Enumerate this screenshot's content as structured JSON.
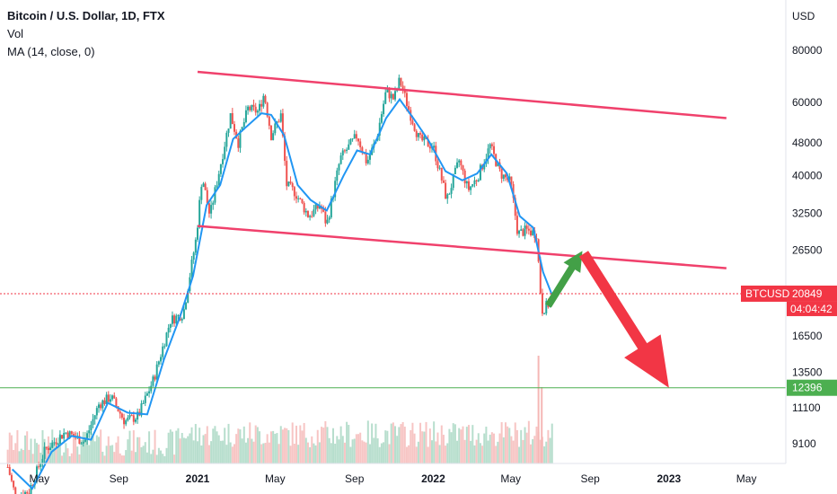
{
  "legend": {
    "title": "Bitcoin / U.S. Dollar, 1D, FTX",
    "vol": "Vol",
    "ma": "MA (14, close, 0)"
  },
  "currency": "USD",
  "colors": {
    "candle_up": "#26a69a",
    "candle_down": "#ef5350",
    "ma_line": "#2196f3",
    "channel": "#f0416c",
    "support": "#4caf50",
    "arrow_up": "#43a047",
    "arrow_down": "#f23645",
    "price_tag": "#f23645",
    "support_tag": "#4caf50"
  },
  "chart_data": {
    "type": "line",
    "title": "Bitcoin / U.S. Dollar, 1D, FTX",
    "yscale": "log",
    "ylim": [
      7600,
      95000
    ],
    "y_ticks": [
      80000,
      60000,
      48000,
      40000,
      32500,
      26500,
      20849,
      16500,
      13500,
      11100,
      9100
    ],
    "x_ticks": [
      "May",
      "Sep",
      "2021",
      "May",
      "Sep",
      "2022",
      "May",
      "Sep",
      "2023",
      "May"
    ],
    "x_ticks_bold": [
      "2021",
      "2022",
      "2023"
    ],
    "x_tick_dates": [
      "2020-05-01",
      "2020-09-01",
      "2021-01-01",
      "2021-05-01",
      "2021-09-01",
      "2022-01-01",
      "2022-05-01",
      "2022-09-01",
      "2023-01-01",
      "2023-05-01"
    ],
    "xlim": [
      "2020-03-01",
      "2023-07-01"
    ],
    "series": [
      {
        "name": "BTCUSD",
        "x": [
          "2020-03-13",
          "2020-03-25",
          "2020-04-15",
          "2020-05-10",
          "2020-06-10",
          "2020-07-10",
          "2020-08-01",
          "2020-08-20",
          "2020-09-10",
          "2020-10-01",
          "2020-10-25",
          "2020-11-20",
          "2020-12-10",
          "2020-12-30",
          "2021-01-08",
          "2021-01-20",
          "2021-02-10",
          "2021-02-21",
          "2021-03-05",
          "2021-03-20",
          "2021-04-05",
          "2021-04-14",
          "2021-04-25",
          "2021-05-10",
          "2021-05-19",
          "2021-06-01",
          "2021-06-22",
          "2021-07-10",
          "2021-07-20",
          "2021-08-10",
          "2021-09-05",
          "2021-09-20",
          "2021-10-05",
          "2021-10-20",
          "2021-11-01",
          "2021-11-10",
          "2021-11-25",
          "2021-12-10",
          "2022-01-01",
          "2022-01-22",
          "2022-02-10",
          "2022-02-24",
          "2022-03-10",
          "2022-03-30",
          "2022-04-15",
          "2022-05-01",
          "2022-05-12",
          "2022-05-25",
          "2022-06-10",
          "2022-06-18",
          "2022-06-30",
          "2022-07-05"
        ],
        "values": [
          8000,
          6800,
          7000,
          8800,
          9700,
          9200,
          11300,
          11800,
          10300,
          10600,
          13000,
          18000,
          18700,
          28500,
          40000,
          32000,
          46000,
          56000,
          48000,
          58000,
          57000,
          63000,
          50000,
          56000,
          38000,
          36500,
          32000,
          34000,
          30500,
          44000,
          50000,
          43000,
          49000,
          64000,
          61000,
          68000,
          57000,
          49000,
          47000,
          35000,
          43500,
          37000,
          39500,
          47200,
          40500,
          38500,
          29000,
          29600,
          29000,
          19000,
          19800,
          20849
        ]
      },
      {
        "name": "MA (14, close, 0)",
        "x": [
          "2020-03-20",
          "2020-04-20",
          "2020-05-20",
          "2020-06-20",
          "2020-07-20",
          "2020-08-15",
          "2020-09-15",
          "2020-10-15",
          "2020-11-10",
          "2020-12-05",
          "2020-12-25",
          "2021-01-15",
          "2021-02-05",
          "2021-02-25",
          "2021-03-15",
          "2021-04-10",
          "2021-04-25",
          "2021-05-15",
          "2021-06-05",
          "2021-06-25",
          "2021-07-20",
          "2021-08-15",
          "2021-09-05",
          "2021-09-25",
          "2021-10-20",
          "2021-11-10",
          "2021-12-01",
          "2021-12-25",
          "2022-01-20",
          "2022-02-15",
          "2022-03-10",
          "2022-04-01",
          "2022-04-25",
          "2022-05-15",
          "2022-06-05",
          "2022-06-20",
          "2022-07-05"
        ],
        "values": [
          7900,
          7100,
          8700,
          9500,
          9300,
          11400,
          10800,
          10700,
          14500,
          18400,
          23000,
          34000,
          38000,
          49000,
          52000,
          56500,
          56000,
          50000,
          38000,
          35000,
          33000,
          40000,
          46000,
          45000,
          55000,
          61000,
          55000,
          48500,
          41000,
          39000,
          40500,
          45000,
          40500,
          32000,
          30000,
          23500,
          20500
        ]
      },
      {
        "name": "Upper channel",
        "x": [
          "2021-01-01",
          "2022-07-20",
          "2023-03-31"
        ],
        "values": [
          71000,
          63000,
          55000
        ]
      },
      {
        "name": "Lower channel",
        "x": [
          "2021-01-01",
          "2022-07-20",
          "2023-03-31"
        ],
        "values": [
          30300,
          26500,
          24000
        ]
      },
      {
        "name": "12396",
        "x": [
          "2020-03-01",
          "2023-07-01"
        ],
        "values": [
          12396,
          12396
        ]
      }
    ],
    "price_tags": [
      {
        "label": "BTCUSD",
        "value": "20849",
        "time": "04:04:42"
      },
      {
        "label": "",
        "value": "12396",
        "time": ""
      }
    ]
  }
}
